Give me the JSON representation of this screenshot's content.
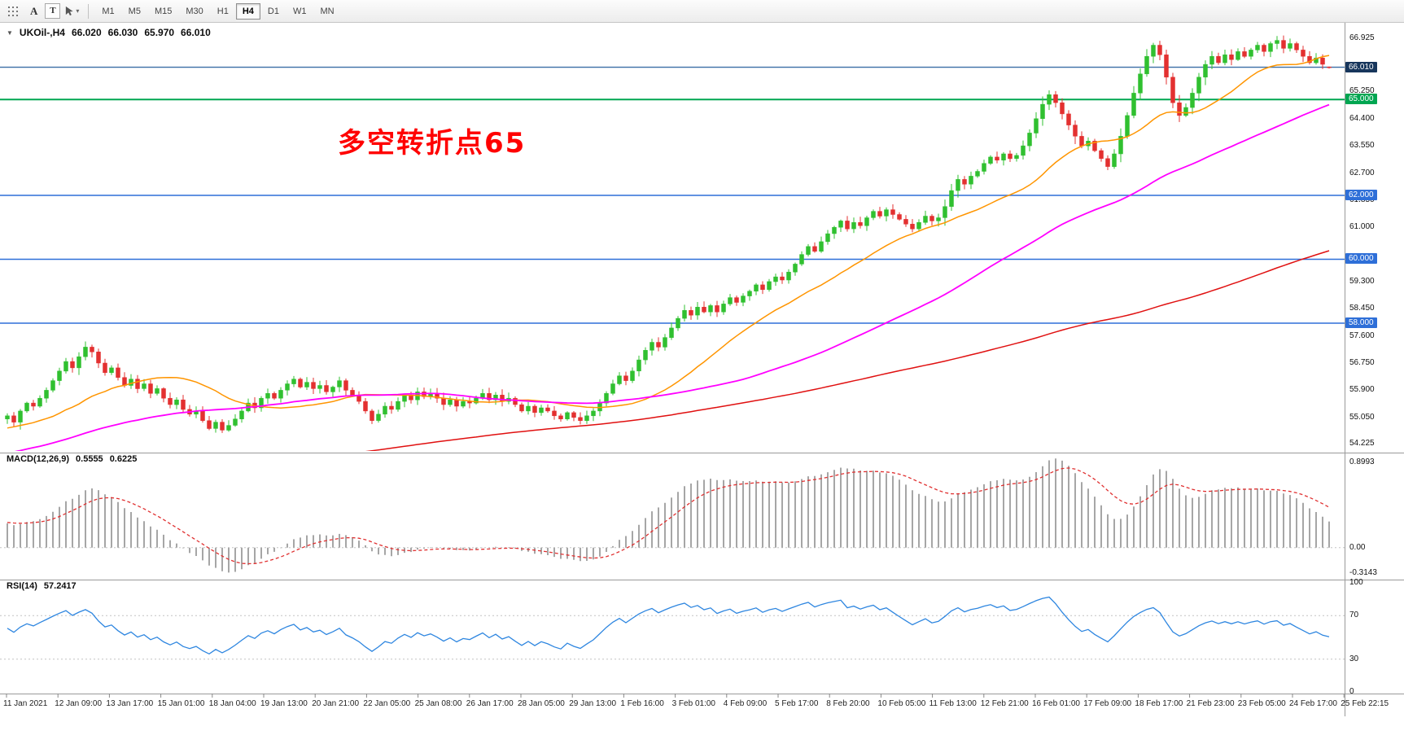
{
  "toolbar": {
    "tools": {
      "text_a": "A",
      "text_t": "T"
    },
    "timeframes": [
      {
        "label": "M1"
      },
      {
        "label": "M5"
      },
      {
        "label": "M15"
      },
      {
        "label": "M30"
      },
      {
        "label": "H1"
      },
      {
        "label": "H4"
      },
      {
        "label": "D1"
      },
      {
        "label": "W1"
      },
      {
        "label": "MN"
      }
    ],
    "active_timeframe": "H4"
  },
  "chart": {
    "symbol_label": "UKOil-,H4",
    "quote": {
      "open": "66.020",
      "high": "66.030",
      "low": "65.970",
      "close": "66.010"
    },
    "annotation": {
      "text": "多空转折点65",
      "color": "#ff0000"
    }
  },
  "chart_data": {
    "type": "candlestick",
    "symbol": "UKOil-",
    "timeframe": "H4",
    "first_open": 55.0,
    "closes": [
      55.1,
      54.9,
      55.25,
      55.5,
      55.4,
      55.65,
      55.9,
      56.2,
      56.5,
      56.8,
      56.6,
      56.95,
      57.25,
      57.1,
      56.75,
      56.45,
      56.6,
      56.3,
      56.05,
      56.25,
      55.95,
      56.1,
      55.8,
      55.95,
      55.65,
      55.45,
      55.6,
      55.3,
      55.15,
      55.25,
      54.95,
      54.7,
      54.9,
      54.65,
      54.8,
      55.0,
      55.25,
      55.5,
      55.35,
      55.65,
      55.8,
      55.65,
      55.9,
      56.1,
      56.25,
      56.0,
      56.15,
      55.95,
      56.05,
      55.85,
      56.0,
      56.2,
      55.9,
      55.75,
      55.55,
      55.25,
      54.95,
      55.15,
      55.4,
      55.3,
      55.55,
      55.75,
      55.6,
      55.85,
      55.7,
      55.8,
      55.65,
      55.45,
      55.6,
      55.4,
      55.55,
      55.5,
      55.65,
      55.8,
      55.6,
      55.75,
      55.55,
      55.65,
      55.45,
      55.25,
      55.4,
      55.2,
      55.35,
      55.25,
      55.1,
      55.0,
      55.2,
      55.05,
      54.95,
      55.1,
      55.25,
      55.5,
      55.8,
      56.1,
      56.35,
      56.2,
      56.5,
      56.85,
      57.15,
      57.4,
      57.25,
      57.55,
      57.85,
      58.15,
      58.4,
      58.25,
      58.5,
      58.35,
      58.55,
      58.35,
      58.6,
      58.8,
      58.65,
      58.85,
      59.0,
      59.2,
      59.05,
      59.3,
      59.45,
      59.35,
      59.6,
      59.85,
      60.15,
      60.4,
      60.25,
      60.55,
      60.8,
      61.0,
      61.2,
      60.95,
      61.15,
      61.05,
      61.3,
      61.5,
      61.35,
      61.55,
      61.4,
      61.25,
      61.1,
      60.95,
      61.15,
      61.35,
      61.2,
      61.3,
      61.65,
      62.15,
      62.5,
      62.35,
      62.6,
      62.75,
      63.0,
      63.2,
      63.1,
      63.3,
      63.15,
      63.25,
      63.55,
      63.95,
      64.4,
      64.85,
      65.15,
      64.9,
      64.55,
      64.2,
      63.85,
      63.55,
      63.7,
      63.4,
      63.15,
      62.9,
      63.3,
      63.85,
      64.5,
      65.2,
      65.8,
      66.35,
      66.7,
      66.4,
      65.7,
      64.9,
      64.5,
      64.75,
      65.2,
      65.7,
      66.1,
      66.35,
      66.15,
      66.4,
      66.25,
      66.5,
      66.35,
      66.55,
      66.7,
      66.5,
      66.75,
      66.85,
      66.6,
      66.75,
      66.55,
      66.35,
      66.15,
      66.3,
      66.1,
      66.01
    ],
    "last_bar": {
      "o": 66.02,
      "h": 66.03,
      "l": 65.97,
      "c": 66.01
    },
    "candle_up_color": "#30c030",
    "candle_down_color": "#e33030",
    "horizontal_lines": [
      {
        "value": 66.01,
        "label": "66.010",
        "color": "#3a6ea5",
        "label_bg": "#17365c"
      },
      {
        "value": 65.0,
        "label": "65.000",
        "color": "#00a651",
        "label_bg": "#00a651"
      },
      {
        "value": 62.0,
        "label": "62.000",
        "color": "#2e6fd8",
        "label_bg": "#2e6fd8"
      },
      {
        "value": 60.0,
        "label": "60.000",
        "color": "#2e6fd8",
        "label_bg": "#2e6fd8"
      },
      {
        "value": 58.0,
        "label": "58.000",
        "color": "#2e6fd8",
        "label_bg": "#2e6fd8"
      }
    ],
    "price_ticks": [
      "66.925",
      "65.250",
      "64.400",
      "63.550",
      "62.700",
      "61.850",
      "61.000",
      "59.300",
      "58.450",
      "57.600",
      "56.750",
      "55.900",
      "55.050",
      "54.225"
    ],
    "moving_averages": [
      {
        "name": "fast",
        "period": 21,
        "color": "#ff9500"
      },
      {
        "name": "medium",
        "period": 60,
        "color": "#ff00ff"
      },
      {
        "name": "slow",
        "period": 160,
        "color": "#e01010"
      }
    ],
    "macd": {
      "label": "MACD(12,26,9)",
      "value_main": "0.5555",
      "value_signal": "0.6225",
      "params": [
        12,
        26,
        9
      ],
      "axis_labels": [
        "0.8993",
        "0.00",
        "-0.3143"
      ],
      "histogram_color": "#a6a6a6",
      "signal_color": "#e03030"
    },
    "rsi": {
      "label": "RSI(14)",
      "value": "57.2417",
      "period": 14,
      "levels": [
        100,
        70,
        30,
        0
      ],
      "line_color": "#2e86e0"
    },
    "time_labels": [
      "11 Jan 2021",
      "12 Jan 09:00",
      "13 Jan 17:00",
      "15 Jan 01:00",
      "18 Jan 04:00",
      "19 Jan 13:00",
      "20 Jan 21:00",
      "22 Jan 05:00",
      "25 Jan 08:00",
      "26 Jan 17:00",
      "28 Jan 05:00",
      "29 Jan 13:00",
      "1 Feb 16:00",
      "3 Feb 01:00",
      "4 Feb 09:00",
      "5 Feb 17:00",
      "8 Feb 20:00",
      "10 Feb 05:00",
      "11 Feb 13:00",
      "12 Feb 21:00",
      "16 Feb 01:00",
      "17 Feb 09:00",
      "18 Feb 17:00",
      "21 Feb 23:00",
      "23 Feb 05:00",
      "24 Feb 17:00",
      "25 Feb 22:15"
    ]
  }
}
